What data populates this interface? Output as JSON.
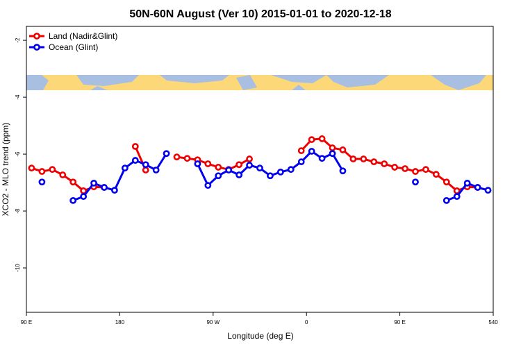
{
  "chart_data": {
    "type": "line",
    "title": "50N-60N August (Ver 10)   2015-01-01 to 2020-12-18",
    "x_label": "Longitude (deg E)",
    "y_label": "XCO2 - MLO trend (ppm)",
    "x": [
      95,
      105,
      115,
      125,
      135,
      145,
      155,
      165,
      175,
      185,
      195,
      205,
      215,
      225,
      235,
      245,
      255,
      265,
      275,
      285,
      295,
      305,
      315,
      325,
      335,
      345,
      355,
      365,
      375,
      385,
      395,
      405,
      415,
      425,
      435,
      445,
      455,
      465,
      475,
      485,
      495,
      505,
      515,
      525,
      535
    ],
    "series": [
      {
        "name": "Land (Nadir&Glint)",
        "color": "#ee0000",
        "values": [
          -6.49,
          -6.61,
          -6.54,
          -6.73,
          -6.98,
          -7.29,
          -7.15,
          -7.17,
          null,
          null,
          -5.73,
          -6.56,
          null,
          null,
          -6.1,
          -6.15,
          -6.2,
          -6.34,
          -6.46,
          -6.54,
          -6.37,
          -6.17,
          null,
          null,
          null,
          null,
          -5.88,
          -5.49,
          -5.46,
          -5.78,
          -5.85,
          -6.17,
          -6.17,
          -6.27,
          -6.34,
          -6.46,
          -6.51,
          -6.61,
          -6.54,
          -6.71,
          -6.98,
          -7.29,
          -7.15,
          -7.17,
          null
        ]
      },
      {
        "name": "Ocean (Glint)",
        "color": "#0000ee",
        "values": [
          null,
          -6.98,
          null,
          null,
          -7.63,
          -7.49,
          -7.02,
          -7.17,
          -7.27,
          -6.49,
          -6.22,
          -6.37,
          -6.56,
          -5.98,
          null,
          null,
          -6.34,
          -7.1,
          -6.76,
          -6.56,
          -6.73,
          -6.39,
          -6.49,
          -6.76,
          -6.63,
          -6.54,
          -6.27,
          -5.9,
          -6.15,
          -5.98,
          -6.59,
          null,
          null,
          null,
          null,
          null,
          null,
          -6.98,
          null,
          null,
          -7.63,
          -7.49,
          -7.02,
          -7.17,
          -7.27
        ]
      }
    ],
    "xlim": [
      90,
      540
    ],
    "xticks": [
      {
        "value": 90,
        "label": "90 E"
      },
      180,
      {
        "value": 270,
        "label": "90 W"
      },
      0,
      {
        "value": 450,
        "label": "90 E"
      },
      540
    ],
    "ylim": [
      -11.56,
      -1.51
    ],
    "yticks": [
      -2,
      -4,
      -6,
      -8,
      -10
    ],
    "legend": "top-left"
  }
}
